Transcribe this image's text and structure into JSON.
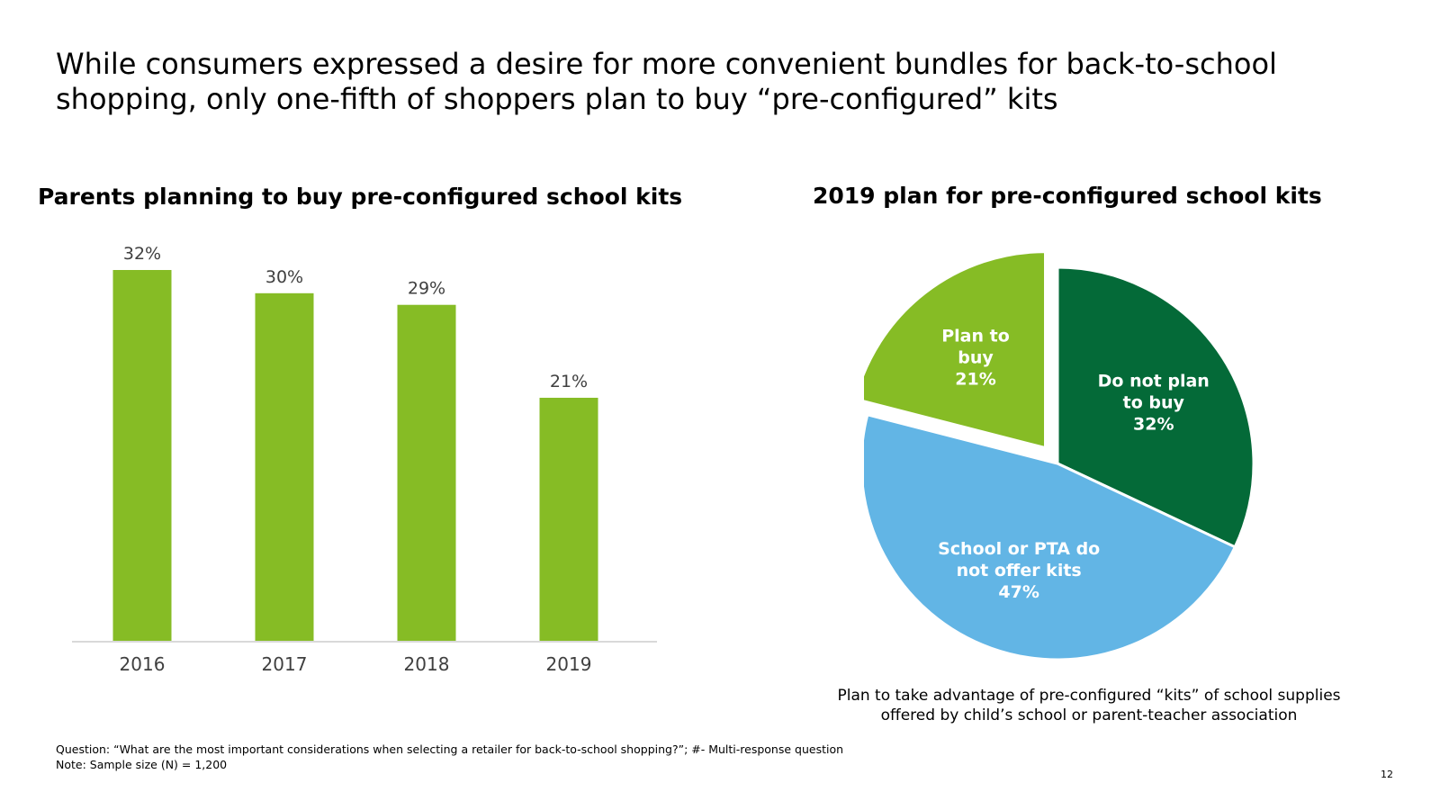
{
  "title": "While consumers expressed a desire for more convenient bundles for back-to-school shopping, only one-fifth of shoppers plan to buy “pre-configured” kits",
  "chart_data": [
    {
      "type": "bar",
      "title": "Parents planning to buy pre-configured school kits",
      "categories": [
        "2016",
        "2017",
        "2018",
        "2019"
      ],
      "values": [
        32,
        30,
        29,
        21
      ],
      "value_labels": [
        "32%",
        "30%",
        "29%",
        "21%"
      ],
      "ylim": [
        0,
        32
      ],
      "grid": false,
      "color": "#86BC25"
    },
    {
      "type": "pie",
      "title": "2019 plan for pre-configured school kits",
      "slices": [
        {
          "name": "Do not plan to buy",
          "value": 32,
          "lines": [
            "Do not plan",
            "to buy",
            "32%"
          ],
          "color": "#046A38",
          "exploded": false
        },
        {
          "name": "School or PTA do not offer kits",
          "value": 47,
          "lines": [
            "School or PTA do",
            "not offer kits",
            "47%"
          ],
          "color": "#62B5E5",
          "exploded": false
        },
        {
          "name": "Plan to buy",
          "value": 21,
          "lines": [
            "Plan to",
            "buy",
            "21%"
          ],
          "color": "#86BC25",
          "exploded": true
        }
      ],
      "caption_lines": [
        "Plan to take advantage of pre-configured “kits” of school supplies",
        "offered by child’s school or parent-teacher association"
      ]
    }
  ],
  "footnotes": {
    "question": "Question: “What are the most important considerations when selecting a retailer for back-to-school shopping?”; #- Multi-response question",
    "note": "Note: Sample size (N) = 1,200"
  },
  "page_number": "12"
}
